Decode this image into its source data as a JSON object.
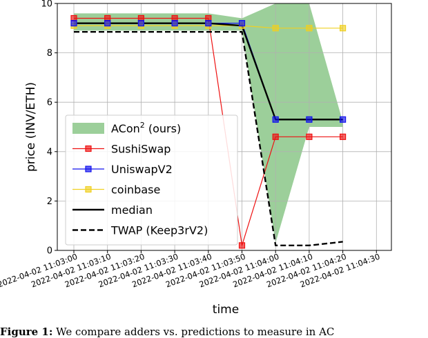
{
  "chart_data": {
    "type": "line",
    "title": "",
    "xlabel": "time",
    "ylabel": "price (INV/ETH)",
    "ylim": [
      0,
      10
    ],
    "yticks": [
      0,
      2,
      4,
      6,
      8,
      10
    ],
    "grid": true,
    "legend_position": "lower-left",
    "x": [
      "2022-04-02 11:03:00",
      "2022-04-02 11:03:10",
      "2022-04-02 11:03:20",
      "2022-04-02 11:03:30",
      "2022-04-02 11:03:40",
      "2022-04-02 11:03:50",
      "2022-04-02 11:04:00",
      "2022-04-02 11:04:10",
      "2022-04-02 11:04:20",
      "2022-04-02 11:04:30"
    ],
    "band": {
      "name": "ACon² (ours)",
      "name_base": "ACon",
      "name_sup": "2",
      "name_rest": " (ours)",
      "color": "#9ccf9a",
      "x": [
        "2022-04-02 11:03:00",
        "2022-04-02 11:03:10",
        "2022-04-02 11:03:20",
        "2022-04-02 11:03:30",
        "2022-04-02 11:03:40",
        "2022-04-02 11:03:50",
        "2022-04-02 11:04:00",
        "2022-04-02 11:04:10",
        "2022-04-02 11:04:20"
      ],
      "upper": [
        9.6,
        9.6,
        9.6,
        9.6,
        9.6,
        9.4,
        10.0,
        10.0,
        5.2
      ],
      "lower": [
        8.9,
        8.9,
        8.9,
        8.9,
        8.9,
        8.9,
        0.3,
        5.0,
        5.0
      ]
    },
    "series": [
      {
        "name": "SushiSwap",
        "color": "#ee1111",
        "marker": "square",
        "linestyle": "solid",
        "x": [
          "2022-04-02 11:03:00",
          "2022-04-02 11:03:10",
          "2022-04-02 11:03:20",
          "2022-04-02 11:03:30",
          "2022-04-02 11:03:40",
          "2022-04-02 11:03:50",
          "2022-04-02 11:04:00",
          "2022-04-02 11:04:10",
          "2022-04-02 11:04:20"
        ],
        "values": [
          9.4,
          9.4,
          9.4,
          9.4,
          9.4,
          0.2,
          4.6,
          4.6,
          4.6
        ]
      },
      {
        "name": "UniswapV2",
        "color": "#1111ee",
        "marker": "square",
        "linestyle": "solid",
        "x": [
          "2022-04-02 11:03:00",
          "2022-04-02 11:03:10",
          "2022-04-02 11:03:20",
          "2022-04-02 11:03:30",
          "2022-04-02 11:03:40",
          "2022-04-02 11:03:50",
          "2022-04-02 11:04:00",
          "2022-04-02 11:04:10",
          "2022-04-02 11:04:20"
        ],
        "values": [
          9.2,
          9.2,
          9.2,
          9.2,
          9.2,
          9.2,
          5.3,
          5.3,
          5.3
        ]
      },
      {
        "name": "coinbase",
        "color": "#f0d020",
        "marker": "square",
        "linestyle": "solid",
        "x": [
          "2022-04-02 11:03:00",
          "2022-04-02 11:03:10",
          "2022-04-02 11:03:20",
          "2022-04-02 11:03:30",
          "2022-04-02 11:03:40",
          "2022-04-02 11:03:50",
          "2022-04-02 11:04:00",
          "2022-04-02 11:04:10",
          "2022-04-02 11:04:20"
        ],
        "values": [
          9.1,
          9.1,
          9.1,
          9.1,
          9.1,
          9.1,
          9.0,
          9.0,
          9.0
        ]
      },
      {
        "name": "median",
        "color": "#000000",
        "marker": "none",
        "linestyle": "solid",
        "x": [
          "2022-04-02 11:03:00",
          "2022-04-02 11:03:10",
          "2022-04-02 11:03:20",
          "2022-04-02 11:03:30",
          "2022-04-02 11:03:40",
          "2022-04-02 11:03:50",
          "2022-04-02 11:04:00",
          "2022-04-02 11:04:10",
          "2022-04-02 11:04:20"
        ],
        "values": [
          9.2,
          9.2,
          9.2,
          9.2,
          9.2,
          9.1,
          5.3,
          5.3,
          5.3
        ]
      },
      {
        "name": "TWAP (Keep3rV2)",
        "color": "#000000",
        "marker": "none",
        "linestyle": "dashed",
        "x": [
          "2022-04-02 11:03:00",
          "2022-04-02 11:03:10",
          "2022-04-02 11:03:20",
          "2022-04-02 11:03:30",
          "2022-04-02 11:03:40",
          "2022-04-02 11:03:50",
          "2022-04-02 11:04:00",
          "2022-04-02 11:04:10",
          "2022-04-02 11:04:20"
        ],
        "values": [
          8.85,
          8.85,
          8.85,
          8.85,
          8.85,
          8.85,
          0.2,
          0.2,
          0.35
        ]
      }
    ]
  },
  "caption": {
    "label": "Figure 1:",
    "text": " We compare adders vs. predictions to measure in AC"
  }
}
